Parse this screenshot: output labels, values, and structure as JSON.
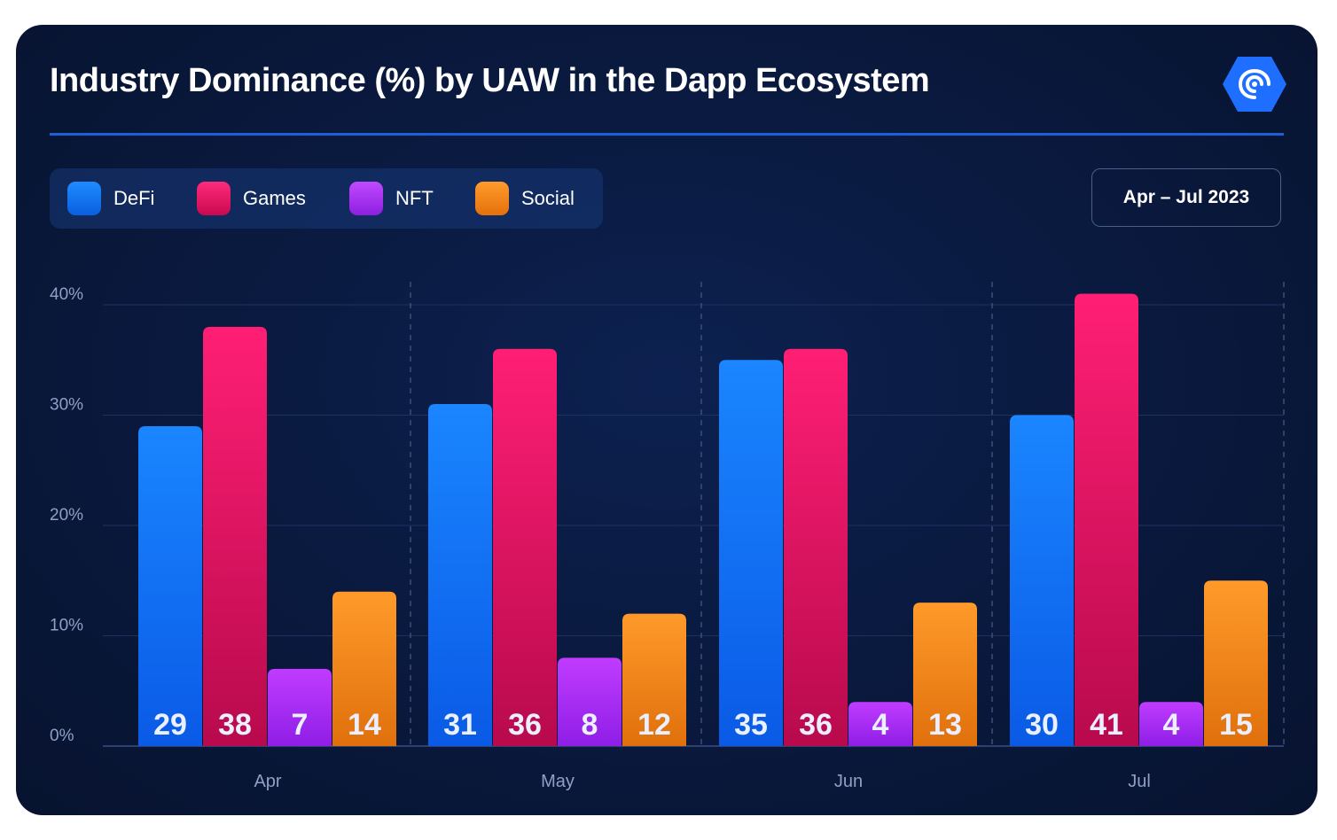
{
  "title": "Industry Dominance (%) by UAW in the Dapp Ecosystem",
  "date_range": "Apr – Jul 2023",
  "logo_icon": "dappradar-logo-icon",
  "chart_data": {
    "type": "bar",
    "categories": [
      "Apr",
      "May",
      "Jun",
      "Jul"
    ],
    "series": [
      {
        "name": "DeFi",
        "values": [
          29,
          31,
          35,
          30
        ],
        "color": "#0a78ff"
      },
      {
        "name": "Games",
        "values": [
          38,
          36,
          36,
          41
        ],
        "color": "#ff0f6a"
      },
      {
        "name": "NFT",
        "values": [
          7,
          8,
          4,
          4
        ],
        "color": "#b02cff"
      },
      {
        "name": "Social",
        "values": [
          14,
          12,
          13,
          15
        ],
        "color": "#ff8c1a"
      }
    ],
    "ylim": [
      0,
      40
    ],
    "yticks": [
      0,
      10,
      20,
      30,
      40
    ],
    "ytick_labels": [
      "0%",
      "10%",
      "20%",
      "30%",
      "40%"
    ],
    "grid": true,
    "legend_position": "top-left"
  }
}
